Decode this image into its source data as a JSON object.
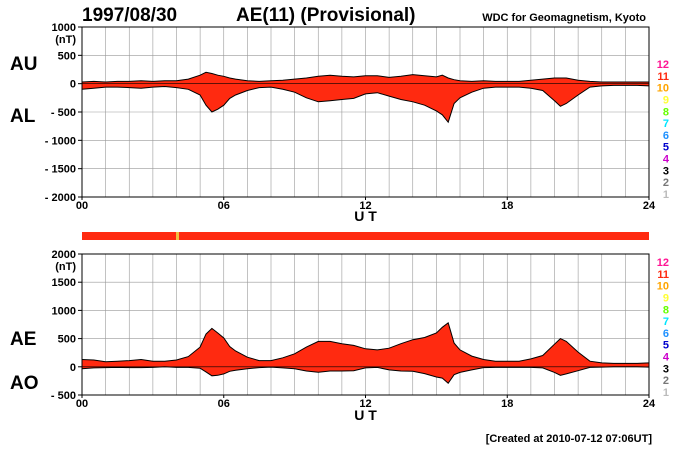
{
  "header": {
    "date": "1997/08/30",
    "title": "AE(11) (Provisional)",
    "source": "WDC for Geomagnetism, Kyoto"
  },
  "footer": {
    "created": "[Created at 2010-07-12 07:06UT]"
  },
  "colors": {
    "fill": "#ff2a10",
    "line": "#000000",
    "grid": "#999999",
    "station_bar": "#ff2a10",
    "station_bar_highlight": "#f0c040"
  },
  "station_count_legend": [
    {
      "label": "12",
      "color": "#ff1493"
    },
    {
      "label": "11",
      "color": "#ff2a10"
    },
    {
      "label": "10",
      "color": "#ffa500"
    },
    {
      "label": "9",
      "color": "#ffff33"
    },
    {
      "label": "8",
      "color": "#66ff00"
    },
    {
      "label": "7",
      "color": "#00e5ff"
    },
    {
      "label": "6",
      "color": "#1e90ff"
    },
    {
      "label": "5",
      "color": "#0000cd"
    },
    {
      "label": "4",
      "color": "#cc00cc"
    },
    {
      "label": "3",
      "color": "#000000"
    },
    {
      "label": "2",
      "color": "#777777"
    },
    {
      "label": "1",
      "color": "#bbbbbb"
    }
  ],
  "chart_data": [
    {
      "type": "area",
      "labels_left": [
        "AU",
        "AL"
      ],
      "y_unit": "(nT)",
      "ylim": [
        -2000,
        1000
      ],
      "yticks": [
        1000,
        500,
        0,
        -500,
        -1000,
        -1500,
        -2000
      ],
      "ytick_labels": [
        "1000",
        "500",
        "0",
        "- 500",
        "- 1000",
        "- 1500",
        "- 2000"
      ],
      "xlim": [
        0,
        24
      ],
      "xticks": [
        "00",
        "06",
        "12",
        "18",
        "24"
      ],
      "xlabel": "U T",
      "x": [
        0,
        0.5,
        1,
        1.5,
        2,
        2.5,
        3,
        3.5,
        4,
        4.5,
        5,
        5.25,
        5.5,
        5.75,
        6,
        6.25,
        6.5,
        7,
        7.5,
        8,
        8.5,
        9,
        9.5,
        10,
        10.5,
        11,
        11.5,
        12,
        12.5,
        13,
        13.5,
        14,
        14.5,
        15,
        15.25,
        15.5,
        15.75,
        16,
        16.5,
        17,
        17.5,
        18,
        18.5,
        19,
        19.5,
        20,
        20.25,
        20.5,
        21,
        21.5,
        22,
        22.5,
        23,
        23.5,
        24
      ],
      "series": [
        {
          "name": "AU",
          "values": [
            30,
            40,
            30,
            40,
            40,
            50,
            40,
            50,
            50,
            80,
            150,
            200,
            180,
            150,
            130,
            100,
            80,
            50,
            40,
            50,
            60,
            80,
            100,
            130,
            150,
            130,
            120,
            140,
            140,
            110,
            130,
            160,
            140,
            120,
            150,
            100,
            70,
            50,
            40,
            50,
            40,
            40,
            40,
            60,
            80,
            100,
            100,
            100,
            60,
            40,
            30,
            30,
            30,
            30,
            30
          ]
        },
        {
          "name": "AL",
          "values": [
            -100,
            -80,
            -60,
            -60,
            -70,
            -80,
            -60,
            -50,
            -70,
            -100,
            -200,
            -380,
            -500,
            -450,
            -380,
            -260,
            -200,
            -120,
            -70,
            -60,
            -100,
            -150,
            -250,
            -320,
            -300,
            -280,
            -260,
            -180,
            -160,
            -220,
            -280,
            -320,
            -380,
            -480,
            -550,
            -680,
            -350,
            -250,
            -150,
            -80,
            -60,
            -60,
            -60,
            -80,
            -120,
            -300,
            -400,
            -350,
            -200,
            -60,
            -40,
            -30,
            -30,
            -30,
            -40
          ]
        }
      ]
    },
    {
      "type": "area",
      "labels_left": [
        "AE",
        "AO"
      ],
      "y_unit": "(nT)",
      "ylim": [
        -500,
        2000
      ],
      "yticks": [
        2000,
        1500,
        1000,
        500,
        0,
        -500
      ],
      "ytick_labels": [
        "2000",
        "1500",
        "1000",
        "500",
        "0",
        "- 500"
      ],
      "xlim": [
        0,
        24
      ],
      "xticks": [
        "00",
        "06",
        "12",
        "18",
        "24"
      ],
      "xlabel": "U T",
      "x": [
        0,
        0.5,
        1,
        1.5,
        2,
        2.5,
        3,
        3.5,
        4,
        4.5,
        5,
        5.25,
        5.5,
        5.75,
        6,
        6.25,
        6.5,
        7,
        7.5,
        8,
        8.5,
        9,
        9.5,
        10,
        10.5,
        11,
        11.5,
        12,
        12.5,
        13,
        13.5,
        14,
        14.5,
        15,
        15.25,
        15.5,
        15.75,
        16,
        16.5,
        17,
        17.5,
        18,
        18.5,
        19,
        19.5,
        20,
        20.25,
        20.5,
        21,
        21.5,
        22,
        22.5,
        23,
        23.5,
        24
      ],
      "series": [
        {
          "name": "AE",
          "values": [
            130,
            120,
            90,
            100,
            110,
            130,
            100,
            100,
            120,
            180,
            350,
            580,
            680,
            600,
            510,
            360,
            280,
            170,
            110,
            110,
            160,
            230,
            350,
            450,
            450,
            410,
            380,
            320,
            300,
            330,
            410,
            480,
            520,
            600,
            700,
            780,
            420,
            300,
            190,
            130,
            100,
            100,
            100,
            140,
            200,
            400,
            500,
            450,
            260,
            100,
            70,
            60,
            60,
            60,
            70
          ]
        },
        {
          "name": "AO",
          "values": [
            -35,
            -20,
            -15,
            -10,
            -15,
            -15,
            -10,
            0,
            -10,
            -10,
            -25,
            -90,
            -160,
            -150,
            -125,
            -80,
            -60,
            -35,
            -15,
            -5,
            -20,
            -35,
            -75,
            -95,
            -75,
            -75,
            -70,
            -20,
            -10,
            -55,
            -75,
            -80,
            -120,
            -180,
            -200,
            -290,
            -140,
            -100,
            -55,
            -15,
            -10,
            -10,
            -10,
            -10,
            -20,
            -100,
            -150,
            -125,
            -70,
            -10,
            -5,
            0,
            0,
            0,
            -5
          ]
        }
      ]
    }
  ]
}
